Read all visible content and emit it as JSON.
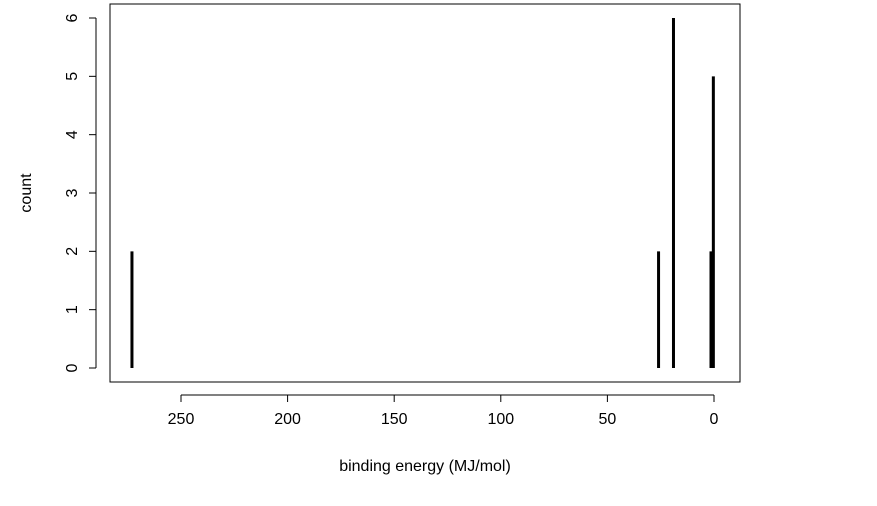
{
  "chart_data": {
    "type": "spike",
    "x_label": "binding energy (MJ/mol)",
    "y_label": "count",
    "x": [
      273,
      26,
      19,
      1.4,
      0.3
    ],
    "values": [
      2,
      2,
      6,
      2,
      5
    ],
    "color": "#000000",
    "xlim": [
      283.3,
      -12.2
    ],
    "xticks": [
      250,
      200,
      150,
      100,
      50,
      0
    ],
    "ylim": [
      -0.24,
      6.24
    ],
    "yticks": [
      0,
      1,
      2,
      3,
      4,
      5,
      6
    ]
  }
}
